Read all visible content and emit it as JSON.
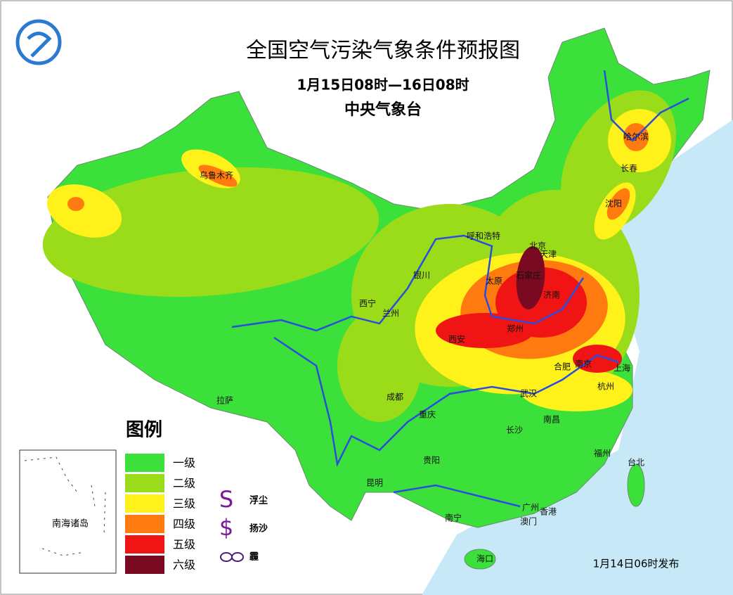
{
  "header": {
    "title": "全国空气污染气象条件预报图",
    "period": "1月15日08时—16日08时",
    "issuer": "中央气象台"
  },
  "legend": {
    "title": "图例",
    "levels": [
      {
        "label": "一级",
        "color": "#3be03b"
      },
      {
        "label": "二级",
        "color": "#9bdc1a"
      },
      {
        "label": "三级",
        "color": "#fff21a"
      },
      {
        "label": "四级",
        "color": "#ff7b10"
      },
      {
        "label": "五级",
        "color": "#f01414"
      },
      {
        "label": "六级",
        "color": "#7a0a22"
      }
    ],
    "symbols": [
      {
        "symbol": "S",
        "label": "浮尘"
      },
      {
        "symbol": "$",
        "label": "扬沙"
      },
      {
        "label": "霾"
      }
    ]
  },
  "cities": [
    "乌鲁木齐",
    "哈尔滨",
    "长春",
    "沈阳",
    "呼和浩特",
    "北京",
    "天津",
    "石家庄",
    "太原",
    "济南",
    "银川",
    "西宁",
    "兰州",
    "郑州",
    "西安",
    "合肥",
    "南京",
    "上海",
    "杭州",
    "武汉",
    "成都",
    "重庆",
    "拉萨",
    "长沙",
    "南昌",
    "贵阳",
    "福州",
    "台北",
    "昆明",
    "南宁",
    "广州",
    "香港",
    "澳门",
    "海口"
  ],
  "inset": {
    "label": "南海诸岛"
  },
  "release": "1月14日06时发布"
}
